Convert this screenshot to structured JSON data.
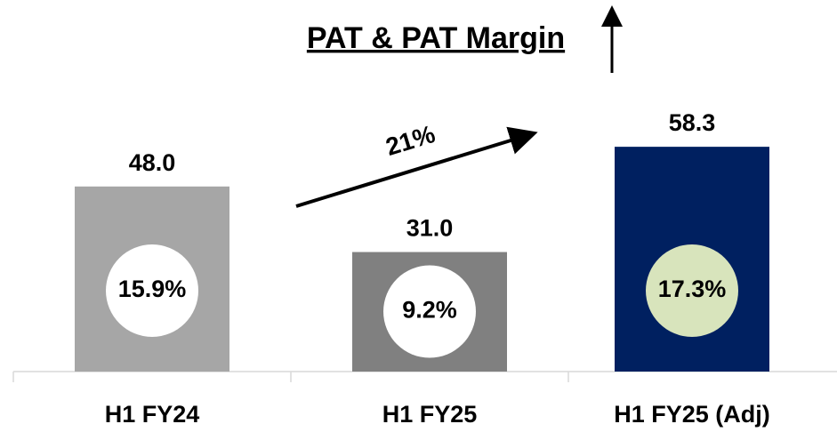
{
  "chart_data": {
    "type": "bar",
    "title": "PAT & PAT Margin",
    "categories": [
      "H1 FY24",
      "H1 FY25",
      "H1 FY25 (Adj)"
    ],
    "values": [
      48.0,
      31.0,
      58.3
    ],
    "value_labels": [
      "48.0",
      "31.0",
      "58.3"
    ],
    "colors": [
      "#a6a6a6",
      "#808080",
      "#002060"
    ],
    "margins": [
      15.9,
      9.2,
      17.3
    ],
    "margin_labels": [
      "15.9%",
      "9.2%",
      "17.3%"
    ],
    "margin_colors": [
      "#ffffff",
      "#ffffff",
      "#d8e4bc"
    ],
    "annotation": "21%",
    "ylim": [
      0,
      80
    ]
  }
}
